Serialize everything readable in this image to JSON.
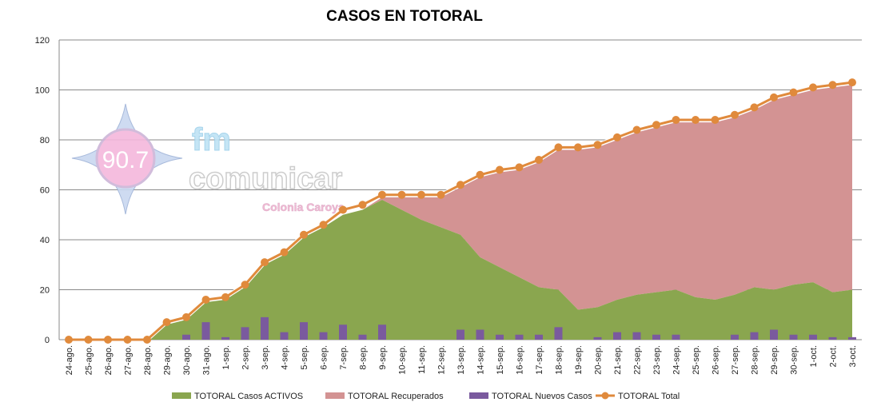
{
  "chart_data": {
    "type": "area",
    "title": "CASOS EN TOTORAL",
    "xlabel": "",
    "ylabel": "",
    "ylim": [
      0,
      120
    ],
    "yticks": [
      0,
      20,
      40,
      60,
      80,
      100,
      120
    ],
    "grid": true,
    "legend_position": "bottom",
    "categories": [
      "24-ago.",
      "25-ago.",
      "26-ago.",
      "27-ago.",
      "28-ago.",
      "29-ago.",
      "30-ago.",
      "31-ago.",
      "1-sep.",
      "2-sep.",
      "3-sep.",
      "4-sep.",
      "5-sep.",
      "6-sep.",
      "7-sep.",
      "8-sep.",
      "9-sep.",
      "10-sep.",
      "11-sep.",
      "12-sep.",
      "13-sep.",
      "14-sep.",
      "15-sep.",
      "16-sep.",
      "17-sep.",
      "18-sep.",
      "19-sep.",
      "20-sep.",
      "21-sep.",
      "22-sep.",
      "23-sep.",
      "24-sep.",
      "25-sep.",
      "26-sep.",
      "27-sep.",
      "28-sep.",
      "29-sep.",
      "30-sep.",
      "1-oct.",
      "2-oct.",
      "3-oct."
    ],
    "series": [
      {
        "name": "TOTORAL Casos ACTIVOS",
        "kind": "area",
        "color": "#8aa64f",
        "values": [
          0,
          0,
          0,
          0,
          0,
          6,
          8,
          15,
          16,
          21,
          30,
          34,
          41,
          45,
          50,
          52,
          56,
          52,
          48,
          45,
          42,
          33,
          29,
          25,
          21,
          20,
          12,
          13,
          16,
          18,
          19,
          20,
          17,
          16,
          18,
          21,
          20,
          22,
          23,
          19,
          20
        ]
      },
      {
        "name": "TOTORAL Recuperados",
        "kind": "area",
        "color": "#d39393",
        "values": [
          0,
          0,
          0,
          0,
          0,
          0,
          0,
          0,
          0,
          0,
          0,
          0,
          0,
          0,
          0,
          0,
          1,
          5,
          9,
          12,
          19,
          32,
          38,
          43,
          50,
          56,
          64,
          64,
          64,
          65,
          66,
          67,
          70,
          71,
          71,
          71,
          76,
          76,
          77,
          82,
          82
        ]
      },
      {
        "name": "TOTORAL Nuevos Casos",
        "kind": "bar",
        "color": "#7a5a9e",
        "values": [
          0,
          0,
          0,
          0,
          0,
          0,
          2,
          7,
          1,
          5,
          9,
          3,
          7,
          3,
          6,
          2,
          6,
          0,
          0,
          0,
          4,
          4,
          2,
          2,
          2,
          5,
          0,
          1,
          3,
          3,
          2,
          2,
          0,
          0,
          2,
          3,
          4,
          2,
          2,
          1,
          1
        ]
      },
      {
        "name": "TOTORAL Total",
        "kind": "line",
        "color": "#e08a3c",
        "values": [
          0,
          0,
          0,
          0,
          0,
          7,
          9,
          16,
          17,
          22,
          31,
          35,
          42,
          46,
          52,
          54,
          58,
          58,
          58,
          58,
          62,
          66,
          68,
          69,
          72,
          77,
          77,
          78,
          81,
          84,
          86,
          88,
          88,
          88,
          90,
          93,
          97,
          99,
          101,
          102,
          103
        ]
      }
    ]
  },
  "logo": {
    "frequency": "90.7",
    "brand_top": "fm",
    "brand": "comunicar",
    "location": "Colonia Caroya"
  }
}
